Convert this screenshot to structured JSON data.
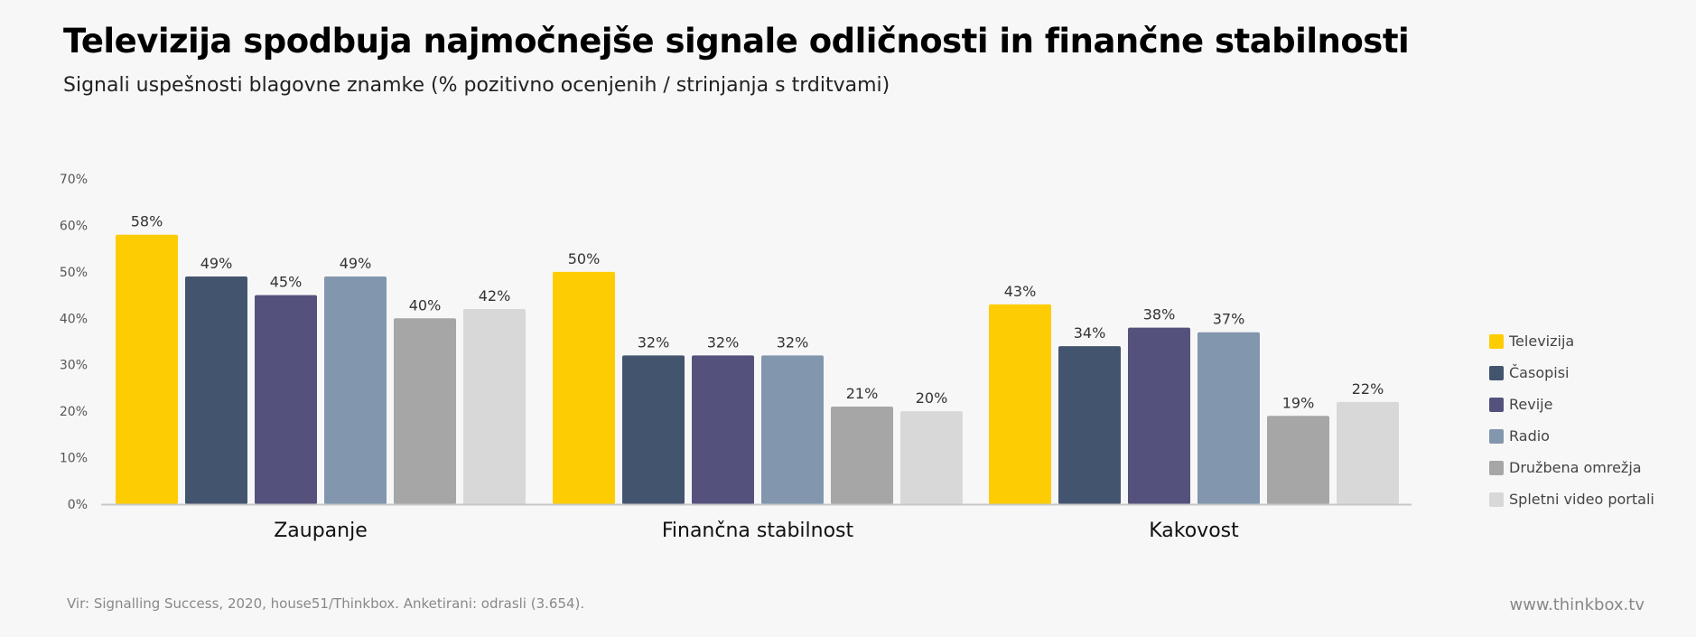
{
  "title": "Televizija spodbuja najmočnejše signale odličnosti in finančne stabilnosti",
  "subtitle": "Signali uspešnosti blagovne znamke (% pozitivno ocenjenih / strinjanja s trditvami)",
  "source": "Vir: Signalling Success, 2020, house51/Thinkbox. Anketirani: odrasli (3.654).",
  "website": "www.thinkbox.tv",
  "chart_data": {
    "type": "bar",
    "categories": [
      "Zaupanje",
      "Finančna stabilnost",
      "Kakovost"
    ],
    "ylim": [
      0,
      70
    ],
    "yticks": [
      "0%",
      "10%",
      "20%",
      "30%",
      "40%",
      "50%",
      "60%",
      "70%"
    ],
    "legend_position": "right",
    "grid": false,
    "series": [
      {
        "name": "Televizija",
        "color": "#fecc02",
        "values": [
          58,
          50,
          43
        ],
        "labels": [
          "58%",
          "50%",
          "43%"
        ]
      },
      {
        "name": "Časopisi",
        "color": "#43546e",
        "values": [
          49,
          32,
          34
        ],
        "labels": [
          "49%",
          "32%",
          "34%"
        ]
      },
      {
        "name": "Revije",
        "color": "#54527c",
        "values": [
          45,
          32,
          38
        ],
        "labels": [
          "45%",
          "32%",
          "38%"
        ]
      },
      {
        "name": "Radio",
        "color": "#8296ae",
        "values": [
          49,
          32,
          37
        ],
        "labels": [
          "49%",
          "32%",
          "37%"
        ]
      },
      {
        "name": "Družbena omrežja",
        "color": "#a6a6a6",
        "values": [
          40,
          21,
          19
        ],
        "labels": [
          "40%",
          "21%",
          "19%"
        ]
      },
      {
        "name": "Spletni video portali",
        "color": "#d8d8d8",
        "values": [
          42,
          20,
          22
        ],
        "labels": [
          "42%",
          "20%",
          "22%"
        ]
      }
    ]
  }
}
